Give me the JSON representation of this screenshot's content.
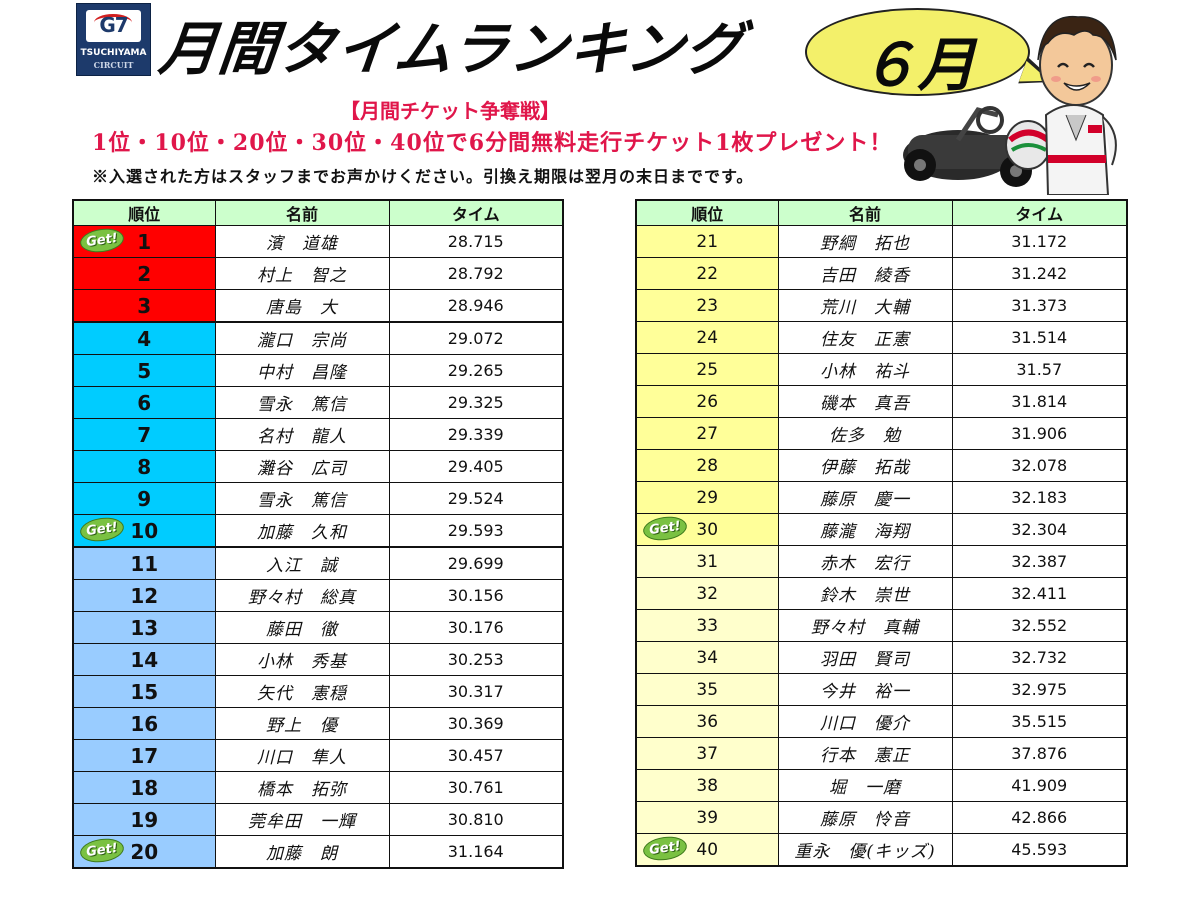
{
  "logo": {
    "brand": "G7",
    "line1": "TSUCHIYAMA",
    "line2": "CIRCUIT"
  },
  "title": "月間タイムランキング",
  "month": "６月",
  "promo": {
    "heading": "【月間チケット争奪戦】",
    "main": "1位・10位・20位・30位・40位で6分間無料走行チケット1枚プレゼント！",
    "note": "※入選された方はスタッフまでお声かけください。引換え期限は翌月の末日までです。"
  },
  "get_label": "Get!",
  "colors": {
    "red": "#ff0000",
    "cyan": "#00ccff",
    "light_blue": "#99ccff",
    "yellow": "#ffff99",
    "light_yellow": "#ffffcc",
    "header": "#ccffcc"
  },
  "headers": {
    "rank": "順位",
    "name": "名前",
    "time": "タイム"
  },
  "left": [
    {
      "rank": "1",
      "name": "濱　道雄",
      "time": "28.715"
    },
    {
      "rank": "2",
      "name": "村上　智之",
      "time": "28.792"
    },
    {
      "rank": "3",
      "name": "唐島　大",
      "time": "28.946"
    },
    {
      "rank": "4",
      "name": "瀧口　宗尚",
      "time": "29.072"
    },
    {
      "rank": "5",
      "name": "中村　昌隆",
      "time": "29.265"
    },
    {
      "rank": "6",
      "name": "雪永　篤信",
      "time": "29.325"
    },
    {
      "rank": "7",
      "name": "名村　龍人",
      "time": "29.339"
    },
    {
      "rank": "8",
      "name": "灘谷　広司",
      "time": "29.405"
    },
    {
      "rank": "9",
      "name": "雪永　篤信",
      "time": "29.524"
    },
    {
      "rank": "10",
      "name": "加藤　久和",
      "time": "29.593"
    },
    {
      "rank": "11",
      "name": "入江　誠",
      "time": "29.699"
    },
    {
      "rank": "12",
      "name": "野々村　総真",
      "time": "30.156"
    },
    {
      "rank": "13",
      "name": "藤田　徹",
      "time": "30.176"
    },
    {
      "rank": "14",
      "name": "小林　秀基",
      "time": "30.253"
    },
    {
      "rank": "15",
      "name": "矢代　憲穏",
      "time": "30.317"
    },
    {
      "rank": "16",
      "name": "野上　優",
      "time": "30.369"
    },
    {
      "rank": "17",
      "name": "川口　隼人",
      "time": "30.457"
    },
    {
      "rank": "18",
      "name": "橋本　拓弥",
      "time": "30.761"
    },
    {
      "rank": "19",
      "name": "莞牟田　一輝",
      "time": "30.810"
    },
    {
      "rank": "20",
      "name": "加藤　朗",
      "time": "31.164"
    }
  ],
  "right": [
    {
      "rank": "21",
      "name": "野綱　拓也",
      "time": "31.172"
    },
    {
      "rank": "22",
      "name": "吉田　綾香",
      "time": "31.242"
    },
    {
      "rank": "23",
      "name": "荒川　大輔",
      "time": "31.373"
    },
    {
      "rank": "24",
      "name": "住友　正憲",
      "time": "31.514"
    },
    {
      "rank": "25",
      "name": "小林　祐斗",
      "time": "31.57"
    },
    {
      "rank": "26",
      "name": "磯本　真吾",
      "time": "31.814"
    },
    {
      "rank": "27",
      "name": "佐多　勉",
      "time": "31.906"
    },
    {
      "rank": "28",
      "name": "伊藤　拓哉",
      "time": "32.078"
    },
    {
      "rank": "29",
      "name": "藤原　慶一",
      "time": "32.183"
    },
    {
      "rank": "30",
      "name": "藤瀧　海翔",
      "time": "32.304"
    },
    {
      "rank": "31",
      "name": "赤木　宏行",
      "time": "32.387"
    },
    {
      "rank": "32",
      "name": "鈴木　崇世",
      "time": "32.411"
    },
    {
      "rank": "33",
      "name": "野々村　真輔",
      "time": "32.552"
    },
    {
      "rank": "34",
      "name": "羽田　賢司",
      "time": "32.732"
    },
    {
      "rank": "35",
      "name": "今井　裕一",
      "time": "32.975"
    },
    {
      "rank": "36",
      "name": "川口　優介",
      "time": "35.515"
    },
    {
      "rank": "37",
      "name": "行本　憲正",
      "time": "37.876"
    },
    {
      "rank": "38",
      "name": "堀　一磨",
      "time": "41.909"
    },
    {
      "rank": "39",
      "name": "藤原　怜音",
      "time": "42.866"
    },
    {
      "rank": "40",
      "name": "重永　優(キッズ)",
      "time": "45.593"
    }
  ]
}
